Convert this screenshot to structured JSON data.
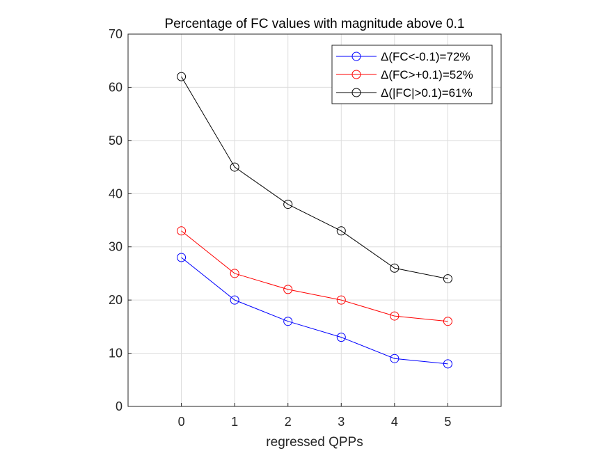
{
  "chart_data": {
    "type": "line",
    "title": "Percentage of FC values with magnitude above 0.1",
    "xlabel": "regressed QPPs",
    "ylabel": "",
    "xlim": [
      -1,
      6
    ],
    "ylim": [
      0,
      70
    ],
    "xticks": [
      "0",
      "1",
      "2",
      "3",
      "4",
      "5"
    ],
    "yticks": [
      "0",
      "10",
      "20",
      "30",
      "40",
      "50",
      "60",
      "70"
    ],
    "grid": true,
    "legend_position": "top-right",
    "x": [
      0,
      1,
      2,
      3,
      4,
      5
    ],
    "series": [
      {
        "name": "Δ(FC<-0.1)=72%",
        "color": "#0000ff",
        "marker": "circle-open",
        "values": [
          28,
          20,
          16,
          13,
          9,
          8
        ]
      },
      {
        "name": "Δ(FC>+0.1)=52%",
        "color": "#ff0000",
        "marker": "circle-open",
        "values": [
          33,
          25,
          22,
          20,
          17,
          16
        ]
      },
      {
        "name": "Δ(|FC|>0.1)=61%",
        "color": "#000000",
        "marker": "circle-open",
        "values": [
          62,
          45,
          38,
          33,
          26,
          24
        ]
      }
    ]
  }
}
